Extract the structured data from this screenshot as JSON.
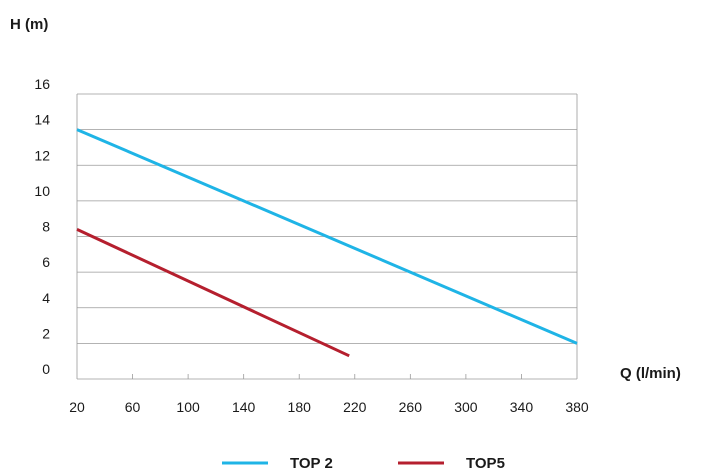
{
  "chart_data": {
    "type": "line",
    "xlabel": "Q (l/min)",
    "ylabel": "H (m)",
    "xlim": [
      20,
      380
    ],
    "ylim": [
      0,
      16
    ],
    "x_ticks": [
      20,
      60,
      100,
      140,
      180,
      220,
      260,
      300,
      340,
      380
    ],
    "y_ticks": [
      0,
      2,
      4,
      6,
      8,
      10,
      12,
      14,
      16
    ],
    "grid": "horizontal",
    "legend_position": "bottom",
    "series": [
      {
        "name": "TOP 2",
        "color": "#1fb4e6",
        "points": [
          [
            20,
            14
          ],
          [
            380,
            2
          ]
        ]
      },
      {
        "name": "TOP5",
        "color": "#b51f2e",
        "points": [
          [
            20,
            8.4
          ],
          [
            216,
            1.3
          ]
        ]
      }
    ]
  }
}
